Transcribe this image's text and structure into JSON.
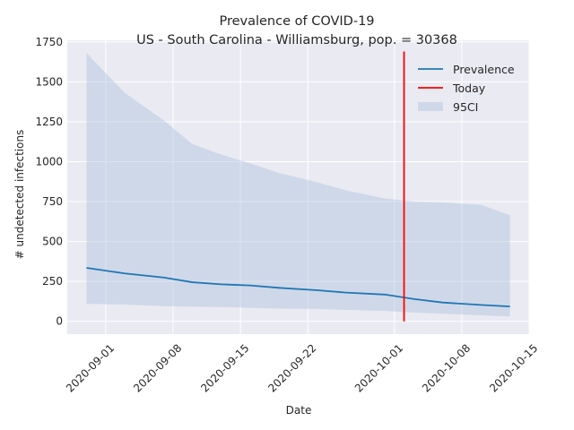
{
  "chart_data": {
    "type": "line",
    "title": "Prevalence of COVID-19",
    "subtitle": "US - South Carolina - Williamsburg, pop. = 30368",
    "xlabel": "Date",
    "ylabel": "# undetected infections",
    "x_is_date": true,
    "xlim": [
      "2020-08-28",
      "2020-10-15"
    ],
    "ylim": [
      -80,
      1760
    ],
    "x_ticks": [
      "2020-09-01",
      "2020-09-08",
      "2020-09-15",
      "2020-09-22",
      "2020-10-01",
      "2020-10-08",
      "2020-10-15"
    ],
    "y_ticks": [
      0,
      250,
      500,
      750,
      1000,
      1250,
      1500,
      1750
    ],
    "grid": true,
    "legend_position": "top-right",
    "series": [
      {
        "name": "Prevalence",
        "kind": "line",
        "color": "#1f77b4",
        "x": [
          "2020-08-30",
          "2020-09-03",
          "2020-09-07",
          "2020-09-10",
          "2020-09-13",
          "2020-09-16",
          "2020-09-19",
          "2020-09-23",
          "2020-09-26",
          "2020-09-30",
          "2020-10-03",
          "2020-10-06",
          "2020-10-10",
          "2020-10-13"
        ],
        "values": [
          335,
          300,
          275,
          245,
          232,
          225,
          210,
          195,
          180,
          168,
          140,
          118,
          103,
          93
        ]
      },
      {
        "name": "Today",
        "kind": "vline",
        "color": "#ff0000",
        "x": [
          "2020-10-02",
          "2020-10-02"
        ],
        "values": [
          0,
          1690
        ]
      },
      {
        "name": "95CI",
        "kind": "band",
        "color": "#b0c4de",
        "x": [
          "2020-08-30",
          "2020-09-03",
          "2020-09-07",
          "2020-09-10",
          "2020-09-13",
          "2020-09-16",
          "2020-09-19",
          "2020-09-23",
          "2020-09-26",
          "2020-09-30",
          "2020-10-03",
          "2020-10-06",
          "2020-10-10",
          "2020-10-13"
        ],
        "upper": [
          1680,
          1430,
          1260,
          1110,
          1045,
          990,
          930,
          870,
          820,
          770,
          750,
          745,
          730,
          665
        ],
        "lower": [
          110,
          105,
          95,
          92,
          90,
          85,
          80,
          78,
          72,
          65,
          55,
          48,
          38,
          30
        ]
      }
    ]
  }
}
